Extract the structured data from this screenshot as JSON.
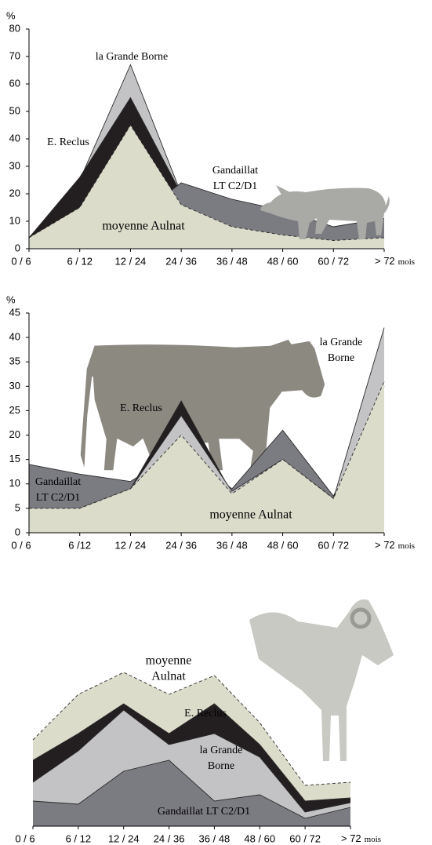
{
  "chart_data": [
    {
      "type": "area",
      "y_unit": "%",
      "x_unit": "mois",
      "categories": [
        "0 / 6",
        "6 / 12",
        "12 / 24",
        "24 / 36",
        "36 / 48",
        "48 / 60",
        "60 / 72",
        "> 72"
      ],
      "ylim": [
        0,
        80
      ],
      "yticks": [
        0,
        10,
        20,
        30,
        40,
        50,
        60,
        70,
        80
      ],
      "series": [
        {
          "name": [
            "la Grande Borne"
          ],
          "color": "#c3c3c6",
          "values": [
            4,
            25,
            67,
            20,
            15,
            12,
            6,
            7
          ]
        },
        {
          "name": [
            "E. Reclus"
          ],
          "color": "#231f20",
          "values": [
            4,
            26,
            55,
            20,
            14,
            11,
            6,
            7
          ]
        },
        {
          "name": [
            "Gandaillat",
            "LT C2/D1"
          ],
          "color": "#7b7b82",
          "values": [
            4,
            8,
            10,
            24,
            18,
            14,
            8,
            11
          ]
        },
        {
          "name": [
            "moyenne Aulnat"
          ],
          "color": "#dcdccb",
          "line_style": "dashed",
          "values": [
            4,
            15,
            45,
            16,
            8,
            5,
            3,
            4
          ]
        }
      ]
    },
    {
      "type": "area",
      "y_unit": "%",
      "x_unit": "mois",
      "categories": [
        "0 / 6",
        "6 /12",
        "12 / 24",
        "24 / 36",
        "36 / 48",
        "48 / 60",
        "60 / 72",
        "> 72"
      ],
      "ylim": [
        0,
        45
      ],
      "yticks": [
        0,
        5,
        10,
        15,
        20,
        25,
        30,
        35,
        40,
        45
      ],
      "series": [
        {
          "name": [
            "Gandaillat",
            "LT C2/D1"
          ],
          "color": "#7b7b82",
          "values": [
            14,
            12,
            10.5,
            17,
            9,
            21,
            7.5,
            30
          ]
        },
        {
          "name": [
            "E. Reclus"
          ],
          "color": "#231f20",
          "values": [
            5,
            5,
            9,
            27,
            8,
            15,
            7,
            31
          ]
        },
        {
          "name": [
            "la Grande",
            "Borne"
          ],
          "color": "#c3c3c6",
          "values": [
            5,
            5,
            9,
            24,
            8.5,
            15,
            7,
            42
          ]
        },
        {
          "name": [
            "moyenne Aulnat"
          ],
          "color": "#dcdccb",
          "line_style": "dashed",
          "values": [
            5,
            5,
            9,
            20,
            8,
            15,
            7,
            31
          ]
        }
      ]
    },
    {
      "type": "area",
      "x_unit": "mois",
      "categories": [
        "0 / 6",
        "6 / 12",
        "12 / 24",
        "24 / 36",
        "36 / 48",
        "48 / 60",
        "60 / 72",
        "> 72"
      ],
      "ylim": [
        0,
        50
      ],
      "series": [
        {
          "name": [
            "moyenne",
            "Aulnat"
          ],
          "color": "#dcdccb",
          "line_style": "dashed",
          "values": [
            27.5,
            42,
            49,
            42,
            48,
            33,
            13,
            14
          ]
        },
        {
          "name": [
            "E. Reclus"
          ],
          "color": "#231f20",
          "values": [
            21,
            29.5,
            39,
            29.5,
            39,
            26,
            8,
            9
          ]
        },
        {
          "name": [
            "la Grande",
            "Borne"
          ],
          "color": "#c3c3c6",
          "values": [
            14,
            24,
            37,
            26,
            29.5,
            22,
            4.5,
            7.5
          ]
        },
        {
          "name": [
            "Gandaillat LT C2/D1"
          ],
          "color": "#7b7b82",
          "values": [
            8,
            7,
            17.5,
            21,
            8,
            10,
            2.5,
            6
          ]
        }
      ]
    }
  ]
}
